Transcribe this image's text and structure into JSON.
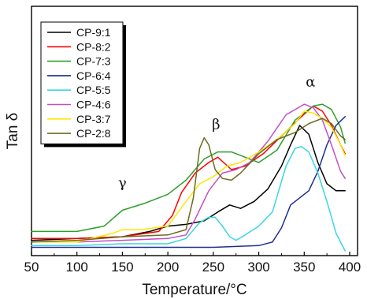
{
  "chart_data": {
    "type": "line",
    "title": "",
    "xlabel": "Temperature/°C",
    "ylabel": "Tan δ",
    "xlim": [
      50,
      400
    ],
    "ylim": [
      0,
      1
    ],
    "y_ticks_shown": false,
    "x_ticks": [
      50,
      100,
      150,
      200,
      250,
      300,
      350,
      400
    ],
    "legend_placement": "top-left",
    "annotations": [
      {
        "text": "α",
        "x": 357,
        "y": 0.93
      },
      {
        "text": "β",
        "x": 253,
        "y": 0.69
      },
      {
        "text": "γ",
        "x": 150,
        "y": 0.36
      }
    ],
    "series": [
      {
        "name": "CP-9:1",
        "color": "#000000",
        "x": [
          50,
          100,
          150,
          180,
          200,
          220,
          240,
          255,
          268,
          280,
          295,
          310,
          325,
          335,
          345,
          355,
          365,
          375,
          385,
          395
        ],
        "y": [
          0.06,
          0.07,
          0.08,
          0.11,
          0.14,
          0.15,
          0.17,
          0.22,
          0.26,
          0.24,
          0.28,
          0.35,
          0.48,
          0.6,
          0.71,
          0.66,
          0.5,
          0.38,
          0.34,
          0.34
        ]
      },
      {
        "name": "CP-8:2",
        "color": "#ff0000",
        "x": [
          50,
          100,
          150,
          190,
          205,
          215,
          230,
          245,
          255,
          270,
          285,
          305,
          325,
          345,
          360,
          370,
          380,
          390,
          395
        ],
        "y": [
          0.07,
          0.07,
          0.08,
          0.11,
          0.2,
          0.33,
          0.44,
          0.5,
          0.53,
          0.46,
          0.48,
          0.55,
          0.65,
          0.75,
          0.82,
          0.79,
          0.71,
          0.6,
          0.55
        ]
      },
      {
        "name": "CP-7:3",
        "color": "#2ca02c",
        "x": [
          50,
          100,
          130,
          150,
          175,
          200,
          220,
          240,
          255,
          270,
          285,
          300,
          320,
          340,
          360,
          370,
          380,
          390,
          395
        ],
        "y": [
          0.11,
          0.11,
          0.14,
          0.23,
          0.27,
          0.32,
          0.4,
          0.52,
          0.56,
          0.56,
          0.53,
          0.5,
          0.57,
          0.74,
          0.82,
          0.83,
          0.8,
          0.7,
          0.61
        ]
      },
      {
        "name": "CP-6:4",
        "color": "#1f2f8f",
        "x": [
          50,
          100,
          150,
          200,
          250,
          300,
          315,
          325,
          335,
          345,
          355,
          365,
          375,
          385,
          395
        ],
        "y": [
          0.02,
          0.02,
          0.02,
          0.02,
          0.02,
          0.03,
          0.05,
          0.13,
          0.26,
          0.3,
          0.34,
          0.45,
          0.6,
          0.71,
          0.76
        ]
      },
      {
        "name": "CP-5:5",
        "color": "#3ad6e0",
        "x": [
          50,
          100,
          150,
          200,
          220,
          235,
          245,
          252,
          260,
          268,
          275,
          285,
          300,
          315,
          330,
          340,
          347,
          355,
          365,
          375,
          385,
          395
        ],
        "y": [
          0.03,
          0.03,
          0.04,
          0.04,
          0.07,
          0.16,
          0.19,
          0.19,
          0.14,
          0.08,
          0.06,
          0.09,
          0.14,
          0.22,
          0.48,
          0.58,
          0.59,
          0.56,
          0.44,
          0.28,
          0.1,
          0.0
        ]
      },
      {
        "name": "CP-4:6",
        "color": "#c050c8",
        "x": [
          50,
          100,
          150,
          200,
          220,
          230,
          245,
          260,
          275,
          290,
          310,
          330,
          350,
          360,
          370,
          380,
          390,
          395
        ],
        "y": [
          0.05,
          0.05,
          0.06,
          0.07,
          0.09,
          0.18,
          0.34,
          0.44,
          0.46,
          0.5,
          0.62,
          0.77,
          0.83,
          0.81,
          0.74,
          0.6,
          0.45,
          0.41
        ]
      },
      {
        "name": "CP-3:7",
        "color": "#ffe600",
        "x": [
          50,
          100,
          140,
          150,
          170,
          200,
          220,
          235,
          250,
          265,
          280,
          300,
          320,
          340,
          350,
          360,
          370,
          380,
          390,
          395
        ],
        "y": [
          0.05,
          0.05,
          0.1,
          0.12,
          0.12,
          0.14,
          0.28,
          0.38,
          0.42,
          0.48,
          0.5,
          0.56,
          0.63,
          0.72,
          0.79,
          0.78,
          0.75,
          0.7,
          0.6,
          0.54
        ]
      },
      {
        "name": "CP-2:8",
        "color": "#6b6b1e",
        "x": [
          50,
          100,
          150,
          200,
          220,
          228,
          235,
          240,
          245,
          252,
          260,
          270,
          280,
          300,
          320,
          340,
          355,
          370,
          380,
          390,
          395
        ],
        "y": [
          0.05,
          0.06,
          0.08,
          0.09,
          0.12,
          0.3,
          0.58,
          0.64,
          0.6,
          0.46,
          0.41,
          0.4,
          0.44,
          0.55,
          0.63,
          0.67,
          0.72,
          0.75,
          0.72,
          0.65,
          0.63
        ]
      }
    ]
  }
}
